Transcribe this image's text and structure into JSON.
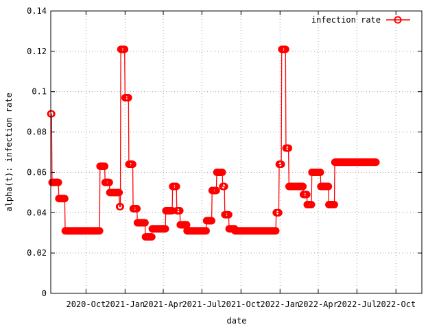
{
  "chart_data": {
    "type": "line",
    "xlabel": "date",
    "ylabel": "alpha(t): infection rate",
    "legend_position": "top-right",
    "grid": true,
    "ylim": [
      0,
      0.14
    ],
    "xlim": [
      "2020-07-10",
      "2022-12-01"
    ],
    "yticks": [
      {
        "value": 0,
        "label": "0"
      },
      {
        "value": 0.02,
        "label": "0.02"
      },
      {
        "value": 0.04,
        "label": "0.04"
      },
      {
        "value": 0.06,
        "label": "0.06"
      },
      {
        "value": 0.08,
        "label": "0.08"
      },
      {
        "value": 0.1,
        "label": "0.1"
      },
      {
        "value": 0.12,
        "label": "0.12"
      },
      {
        "value": 0.14,
        "label": "0.14"
      }
    ],
    "xticks": [
      {
        "value": "2020-10-01",
        "label": "2020-Oct"
      },
      {
        "value": "2021-01-01",
        "label": "2021-Jan"
      },
      {
        "value": "2021-04-01",
        "label": "2021-Apr"
      },
      {
        "value": "2021-07-01",
        "label": "2021-Jul"
      },
      {
        "value": "2021-10-01",
        "label": "2021-Oct"
      },
      {
        "value": "2022-01-01",
        "label": "2022-Jan"
      },
      {
        "value": "2022-04-01",
        "label": "2022-Apr"
      },
      {
        "value": "2022-07-01",
        "label": "2022-Jul"
      },
      {
        "value": "2022-10-01",
        "label": "2022-Oct"
      }
    ],
    "series": [
      {
        "name": "infection rate",
        "color": "#ff0000",
        "marker": "open-circle",
        "segments": [
          {
            "start": "2020-07-10",
            "end": "2020-07-12",
            "value": 0.089
          },
          {
            "start": "2020-07-13",
            "end": "2020-07-28",
            "value": 0.055
          },
          {
            "start": "2020-07-29",
            "end": "2020-08-12",
            "value": 0.047
          },
          {
            "start": "2020-08-13",
            "end": "2020-11-02",
            "value": 0.031
          },
          {
            "start": "2020-11-03",
            "end": "2020-11-14",
            "value": 0.063
          },
          {
            "start": "2020-11-15",
            "end": "2020-11-25",
            "value": 0.055
          },
          {
            "start": "2020-11-26",
            "end": "2020-12-18",
            "value": 0.05
          },
          {
            "start": "2020-12-19",
            "end": "2020-12-21",
            "value": 0.043
          },
          {
            "start": "2020-12-22",
            "end": "2020-12-31",
            "value": 0.121
          },
          {
            "start": "2021-01-01",
            "end": "2021-01-09",
            "value": 0.097
          },
          {
            "start": "2021-01-10",
            "end": "2021-01-19",
            "value": 0.064
          },
          {
            "start": "2021-01-20",
            "end": "2021-01-29",
            "value": 0.042
          },
          {
            "start": "2021-01-30",
            "end": "2021-02-17",
            "value": 0.035
          },
          {
            "start": "2021-02-18",
            "end": "2021-03-05",
            "value": 0.028
          },
          {
            "start": "2021-03-06",
            "end": "2021-04-06",
            "value": 0.032
          },
          {
            "start": "2021-04-07",
            "end": "2021-04-22",
            "value": 0.041
          },
          {
            "start": "2021-04-23",
            "end": "2021-05-02",
            "value": 0.053
          },
          {
            "start": "2021-05-03",
            "end": "2021-05-10",
            "value": 0.041
          },
          {
            "start": "2021-05-11",
            "end": "2021-05-26",
            "value": 0.034
          },
          {
            "start": "2021-05-27",
            "end": "2021-07-11",
            "value": 0.031
          },
          {
            "start": "2021-07-12",
            "end": "2021-07-24",
            "value": 0.036
          },
          {
            "start": "2021-07-25",
            "end": "2021-08-04",
            "value": 0.051
          },
          {
            "start": "2021-08-05",
            "end": "2021-08-18",
            "value": 0.06
          },
          {
            "start": "2021-08-19",
            "end": "2021-08-23",
            "value": 0.053
          },
          {
            "start": "2021-08-24",
            "end": "2021-09-02",
            "value": 0.039
          },
          {
            "start": "2021-09-03",
            "end": "2021-09-16",
            "value": 0.032
          },
          {
            "start": "2021-09-17",
            "end": "2021-12-22",
            "value": 0.031
          },
          {
            "start": "2021-12-23",
            "end": "2021-12-29",
            "value": 0.04
          },
          {
            "start": "2021-12-30",
            "end": "2022-01-04",
            "value": 0.064
          },
          {
            "start": "2022-01-05",
            "end": "2022-01-14",
            "value": 0.121
          },
          {
            "start": "2022-01-15",
            "end": "2022-01-21",
            "value": 0.072
          },
          {
            "start": "2022-01-22",
            "end": "2022-02-24",
            "value": 0.053
          },
          {
            "start": "2022-02-25",
            "end": "2022-03-05",
            "value": 0.049
          },
          {
            "start": "2022-03-06",
            "end": "2022-03-16",
            "value": 0.044
          },
          {
            "start": "2022-03-17",
            "end": "2022-04-06",
            "value": 0.06
          },
          {
            "start": "2022-04-07",
            "end": "2022-04-25",
            "value": 0.053
          },
          {
            "start": "2022-04-26",
            "end": "2022-05-09",
            "value": 0.044
          },
          {
            "start": "2022-05-10",
            "end": "2022-08-15",
            "value": 0.065
          }
        ]
      }
    ]
  }
}
